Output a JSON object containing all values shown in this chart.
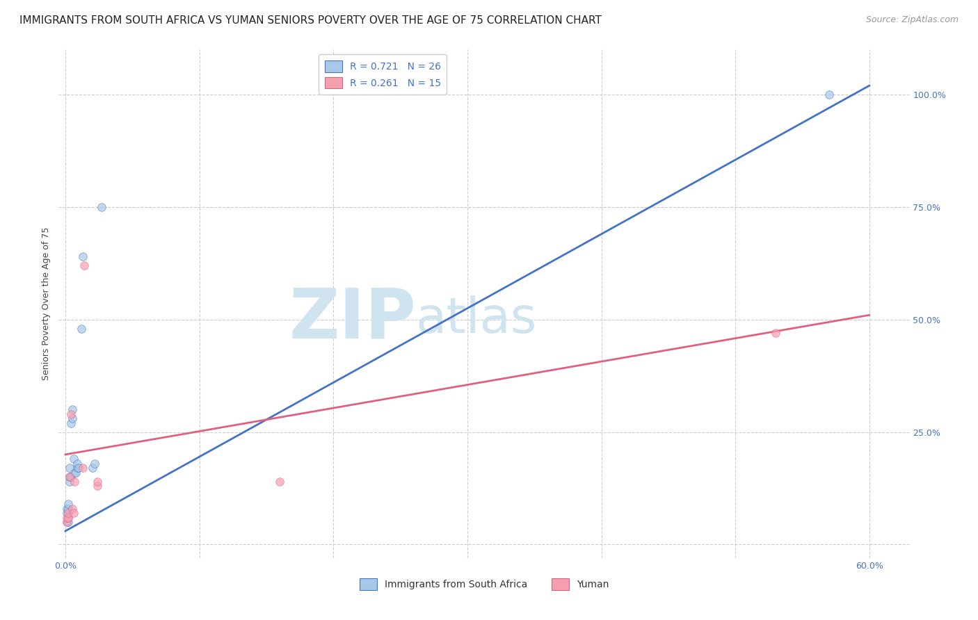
{
  "title": "IMMIGRANTS FROM SOUTH AFRICA VS YUMAN SENIORS POVERTY OVER THE AGE OF 75 CORRELATION CHART",
  "source": "Source: ZipAtlas.com",
  "ylabel": "Seniors Poverty Over the Age of 75",
  "ytick_values": [
    0.0,
    0.25,
    0.5,
    0.75,
    1.0
  ],
  "ytick_labels": [
    "",
    "25.0%",
    "50.0%",
    "75.0%",
    "100.0%"
  ],
  "xtick_values": [
    0.0,
    0.1,
    0.2,
    0.3,
    0.4,
    0.5,
    0.6
  ],
  "xtick_labels": [
    "0.0%",
    "",
    "",
    "",
    "",
    "",
    "60.0%"
  ],
  "xlim": [
    -0.005,
    0.63
  ],
  "ylim": [
    -0.03,
    1.1
  ],
  "blue_scatter_x": [
    0.001,
    0.001,
    0.001,
    0.002,
    0.002,
    0.002,
    0.002,
    0.003,
    0.003,
    0.003,
    0.004,
    0.004,
    0.005,
    0.005,
    0.006,
    0.007,
    0.008,
    0.009,
    0.009,
    0.01,
    0.012,
    0.013,
    0.02,
    0.022,
    0.027,
    0.57
  ],
  "blue_scatter_y": [
    0.05,
    0.07,
    0.08,
    0.05,
    0.06,
    0.08,
    0.09,
    0.14,
    0.15,
    0.17,
    0.15,
    0.27,
    0.28,
    0.3,
    0.19,
    0.16,
    0.16,
    0.17,
    0.18,
    0.17,
    0.48,
    0.64,
    0.17,
    0.18,
    0.75,
    1.0
  ],
  "pink_scatter_x": [
    0.001,
    0.001,
    0.002,
    0.002,
    0.003,
    0.004,
    0.005,
    0.006,
    0.007,
    0.013,
    0.014,
    0.024,
    0.024,
    0.16,
    0.53
  ],
  "pink_scatter_y": [
    0.05,
    0.06,
    0.06,
    0.07,
    0.15,
    0.29,
    0.08,
    0.07,
    0.14,
    0.17,
    0.62,
    0.13,
    0.14,
    0.14,
    0.47
  ],
  "blue_R": 0.721,
  "blue_N": 26,
  "pink_R": 0.261,
  "pink_N": 15,
  "blue_line_x": [
    0.0,
    0.6
  ],
  "blue_line_y": [
    0.03,
    1.02
  ],
  "pink_line_x": [
    0.0,
    0.6
  ],
  "pink_line_y": [
    0.2,
    0.51
  ],
  "blue_color": "#a8c8e8",
  "pink_color": "#f4a0b0",
  "blue_line_color": "#4472c4",
  "pink_line_color": "#e06080",
  "dot_alpha": 0.7,
  "dot_size": 70,
  "watermark_zip": "ZIP",
  "watermark_atlas": "atlas",
  "watermark_color": "#d0e4f0",
  "legend_blue_label": "Immigrants from South Africa",
  "legend_pink_label": "Yuman",
  "title_fontsize": 11,
  "source_fontsize": 9,
  "axis_label_fontsize": 9,
  "tick_fontsize": 9,
  "legend_fontsize": 10
}
